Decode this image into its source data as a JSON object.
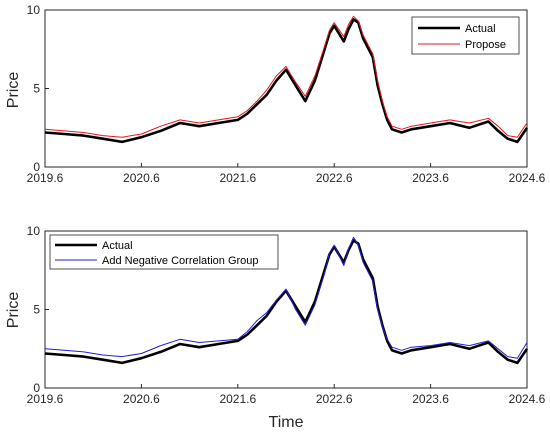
{
  "chart_data": [
    {
      "type": "line",
      "title": "",
      "xlabel": "",
      "ylabel": "Price",
      "xlim": [
        2019.6,
        2024.6
      ],
      "ylim": [
        0,
        10
      ],
      "xticks": [
        "2019.6",
        "2020.6",
        "2021.6",
        "2022.6",
        "2023.6",
        "2024.6"
      ],
      "yticks": [
        "0",
        "5",
        "10"
      ],
      "grid": false,
      "legend_location": "top-right",
      "x": [
        2019.6,
        2019.8,
        2020.0,
        2020.2,
        2020.4,
        2020.6,
        2020.8,
        2021.0,
        2021.2,
        2021.4,
        2021.6,
        2021.7,
        2021.8,
        2021.9,
        2022.0,
        2022.1,
        2022.2,
        2022.3,
        2022.4,
        2022.5,
        2022.55,
        2022.6,
        2022.7,
        2022.75,
        2022.8,
        2022.85,
        2022.9,
        2023.0,
        2023.05,
        2023.1,
        2023.15,
        2023.2,
        2023.3,
        2023.4,
        2023.6,
        2023.8,
        2024.0,
        2024.2,
        2024.3,
        2024.4,
        2024.5,
        2024.6
      ],
      "series": [
        {
          "name": "Actual",
          "color": "#000000",
          "values": [
            2.2,
            2.1,
            2.0,
            1.8,
            1.6,
            1.9,
            2.3,
            2.8,
            2.6,
            2.8,
            3.0,
            3.4,
            4.0,
            4.6,
            5.5,
            6.2,
            5.2,
            4.2,
            5.5,
            7.5,
            8.5,
            9.0,
            8.0,
            8.8,
            9.4,
            9.2,
            8.2,
            7.0,
            5.2,
            4.0,
            3.0,
            2.4,
            2.2,
            2.4,
            2.6,
            2.8,
            2.5,
            2.9,
            2.3,
            1.8,
            1.6,
            2.5
          ]
        },
        {
          "name": "Propose",
          "color": "#e8161b",
          "values": [
            2.4,
            2.3,
            2.2,
            2.0,
            1.9,
            2.1,
            2.6,
            3.0,
            2.8,
            3.0,
            3.2,
            3.6,
            4.2,
            4.9,
            5.8,
            6.4,
            5.4,
            4.5,
            5.8,
            7.7,
            8.7,
            9.2,
            8.3,
            9.1,
            9.6,
            9.3,
            8.4,
            7.2,
            5.5,
            4.2,
            3.2,
            2.6,
            2.4,
            2.6,
            2.8,
            3.0,
            2.8,
            3.1,
            2.6,
            2.0,
            1.9,
            2.8
          ]
        }
      ]
    },
    {
      "type": "line",
      "title": "",
      "xlabel": "Time",
      "ylabel": "Price",
      "xlim": [
        2019.6,
        2024.6
      ],
      "ylim": [
        0,
        10
      ],
      "xticks": [
        "2019.6",
        "2020.6",
        "2021.6",
        "2022.6",
        "2023.6",
        "2024.6"
      ],
      "yticks": [
        "0",
        "5",
        "10"
      ],
      "grid": false,
      "legend_location": "top-left",
      "x": [
        2019.6,
        2019.8,
        2020.0,
        2020.2,
        2020.4,
        2020.6,
        2020.8,
        2021.0,
        2021.2,
        2021.4,
        2021.6,
        2021.7,
        2021.8,
        2021.9,
        2022.0,
        2022.1,
        2022.2,
        2022.3,
        2022.4,
        2022.5,
        2022.55,
        2022.6,
        2022.7,
        2022.75,
        2022.8,
        2022.85,
        2022.9,
        2023.0,
        2023.05,
        2023.1,
        2023.15,
        2023.2,
        2023.3,
        2023.4,
        2023.6,
        2023.8,
        2024.0,
        2024.2,
        2024.3,
        2024.4,
        2024.5,
        2024.6
      ],
      "series": [
        {
          "name": "Actual",
          "color": "#000000",
          "values": [
            2.2,
            2.1,
            2.0,
            1.8,
            1.6,
            1.9,
            2.3,
            2.8,
            2.6,
            2.8,
            3.0,
            3.4,
            4.0,
            4.6,
            5.5,
            6.2,
            5.2,
            4.2,
            5.5,
            7.5,
            8.5,
            9.0,
            8.0,
            8.8,
            9.4,
            9.2,
            8.2,
            7.0,
            5.2,
            4.0,
            3.0,
            2.4,
            2.2,
            2.4,
            2.6,
            2.8,
            2.5,
            2.9,
            2.3,
            1.8,
            1.6,
            2.5
          ]
        },
        {
          "name": "Add Negative Correlation Group",
          "color": "#1f1fd6",
          "values": [
            2.5,
            2.4,
            2.3,
            2.1,
            2.0,
            2.2,
            2.7,
            3.1,
            2.9,
            3.0,
            3.1,
            3.6,
            4.3,
            4.8,
            5.6,
            6.3,
            5.0,
            4.0,
            5.3,
            7.3,
            8.6,
            9.1,
            7.8,
            8.9,
            9.6,
            9.1,
            8.0,
            6.8,
            5.0,
            3.9,
            3.1,
            2.6,
            2.4,
            2.6,
            2.7,
            2.9,
            2.7,
            3.0,
            2.5,
            2.0,
            1.9,
            2.9
          ]
        }
      ]
    }
  ]
}
